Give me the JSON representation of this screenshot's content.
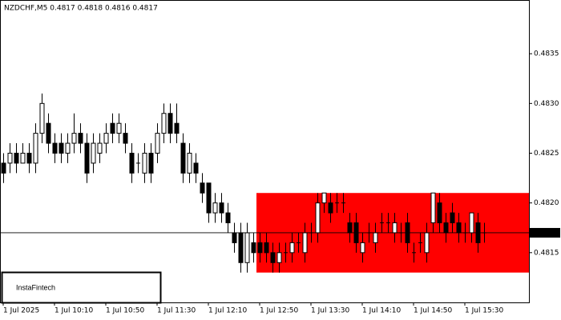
{
  "chart_data": {
    "type": "candlestick",
    "title": "NZDCHF,M5  0.4817 0.4818 0.4816 0.4817",
    "watermark": "InstaFintech",
    "categories": [
      "1 Jul 2025",
      null,
      null,
      null,
      null,
      null,
      null,
      null,
      "1 Jul 10:10",
      null,
      null,
      null,
      null,
      null,
      null,
      null,
      "1 Jul 10:50",
      null,
      null,
      null,
      null,
      null,
      null,
      null,
      "1 Jul 11:30",
      null,
      null,
      null,
      null,
      null,
      null,
      null,
      "1 Jul 12:10",
      null,
      null,
      null,
      null,
      null,
      null,
      null,
      "1 Jul 12:50",
      null,
      null,
      null,
      null,
      null,
      null,
      null,
      "1 Jul 13:30",
      null,
      null,
      null,
      null,
      null,
      null,
      null,
      "1 Jul 14:10",
      null,
      null,
      null,
      null,
      null,
      null,
      null,
      "1 Jul 14:50",
      null,
      null,
      null,
      null,
      null,
      null,
      null,
      "1 Jul 15:30",
      null,
      null,
      null
    ],
    "open": [
      0.4824,
      0.4824,
      0.4825,
      0.4824,
      0.4825,
      0.4824,
      0.4827,
      0.4828,
      0.4826,
      0.4826,
      0.4825,
      0.4826,
      0.4827,
      0.4826,
      0.4824,
      0.4825,
      0.4826,
      0.4828,
      0.4827,
      0.4827,
      0.4825,
      0.4824,
      0.4823,
      0.4825,
      0.4825,
      0.4827,
      0.4829,
      0.4828,
      0.4826,
      0.4823,
      0.4824,
      0.4822,
      0.4822,
      0.4819,
      0.482,
      0.4819,
      0.4817,
      0.4817,
      0.4814,
      0.4816,
      0.4816,
      0.4816,
      0.4815,
      0.4814,
      0.4815,
      0.4815,
      0.4816,
      0.4815,
      0.4817,
      0.4817,
      0.482,
      0.482,
      0.482,
      0.482,
      0.4818,
      0.4818,
      0.4815,
      0.4817,
      0.4816,
      0.4818,
      0.4818,
      0.4817,
      0.4817,
      0.4818,
      0.4815,
      0.4816,
      0.4815,
      0.4818,
      0.482,
      0.4818,
      0.4819,
      0.4818,
      0.4817,
      0.4817,
      0.4818,
      0.4817
    ],
    "high": [
      0.4825,
      0.4826,
      0.4826,
      0.4826,
      0.4826,
      0.4828,
      0.4831,
      0.4829,
      0.4827,
      0.4827,
      0.4827,
      0.4829,
      0.4828,
      0.4827,
      0.4827,
      0.4827,
      0.4828,
      0.4829,
      0.4829,
      0.4828,
      0.4826,
      0.4825,
      0.4826,
      0.4826,
      0.4828,
      0.483,
      0.483,
      0.483,
      0.4827,
      0.4826,
      0.4825,
      0.4823,
      0.4822,
      0.4821,
      0.4821,
      0.482,
      0.4818,
      0.4818,
      0.4818,
      0.4817,
      0.4817,
      0.4817,
      0.4816,
      0.4816,
      0.4816,
      0.4817,
      0.4817,
      0.4818,
      0.4818,
      0.4821,
      0.4821,
      0.4821,
      0.4821,
      0.4821,
      0.4819,
      0.4819,
      0.4817,
      0.4818,
      0.4818,
      0.4819,
      0.4819,
      0.4819,
      0.4818,
      0.4819,
      0.4816,
      0.4817,
      0.4818,
      0.4821,
      0.4821,
      0.4819,
      0.482,
      0.4819,
      0.4818,
      0.4819,
      0.4819,
      0.4818
    ],
    "low": [
      0.4822,
      0.4823,
      0.4823,
      0.4824,
      0.4823,
      0.4823,
      0.4826,
      0.4825,
      0.4824,
      0.4824,
      0.4824,
      0.4825,
      0.4825,
      0.4822,
      0.4823,
      0.4824,
      0.4825,
      0.4826,
      0.4826,
      0.4825,
      0.4822,
      0.4823,
      0.4822,
      0.4822,
      0.4824,
      0.4826,
      0.4826,
      0.4826,
      0.4822,
      0.4822,
      0.4822,
      0.482,
      0.4818,
      0.4818,
      0.4818,
      0.4817,
      0.4815,
      0.4813,
      0.4813,
      0.4814,
      0.4814,
      0.4814,
      0.4813,
      0.4813,
      0.4814,
      0.4814,
      0.4815,
      0.4814,
      0.4816,
      0.4816,
      0.4819,
      0.4818,
      0.4819,
      0.4819,
      0.4816,
      0.4815,
      0.4814,
      0.4816,
      0.4815,
      0.4817,
      0.4817,
      0.4816,
      0.4816,
      0.4815,
      0.4814,
      0.4815,
      0.4814,
      0.4817,
      0.4817,
      0.4816,
      0.4817,
      0.4816,
      0.4816,
      0.4816,
      0.4815,
      0.4816
    ],
    "close": [
      0.4823,
      0.4825,
      0.4824,
      0.4825,
      0.4824,
      0.4827,
      0.483,
      0.4826,
      0.4825,
      0.4825,
      0.4826,
      0.4827,
      0.4826,
      0.4823,
      0.4826,
      0.4826,
      0.4827,
      0.4827,
      0.4828,
      0.4826,
      0.4823,
      0.4824,
      0.4825,
      0.4823,
      0.4827,
      0.4829,
      0.4827,
      0.4827,
      0.4823,
      0.4825,
      0.4823,
      0.4821,
      0.4819,
      0.482,
      0.4819,
      0.4818,
      0.4816,
      0.4814,
      0.4817,
      0.4815,
      0.4815,
      0.4815,
      0.4814,
      0.4815,
      0.4815,
      0.4816,
      0.4816,
      0.4817,
      0.4817,
      0.482,
      0.4821,
      0.4819,
      0.482,
      0.482,
      0.4817,
      0.4816,
      0.4816,
      0.4817,
      0.4817,
      0.4818,
      0.4818,
      0.4818,
      0.4817,
      0.4816,
      0.4815,
      0.4816,
      0.4817,
      0.4821,
      0.4818,
      0.4817,
      0.4818,
      0.4817,
      0.4817,
      0.4819,
      0.4816,
      0.4817
    ],
    "up_color": "#ffffff",
    "down_color": "#000000",
    "ylim": [
      0.481,
      0.48404
    ],
    "yticks": [
      {
        "value": 0.4815,
        "label": "0.4815"
      },
      {
        "value": 0.482,
        "label": "0.4820"
      },
      {
        "value": 0.4825,
        "label": "0.4825"
      },
      {
        "value": 0.483,
        "label": "0.4830"
      },
      {
        "value": 0.4835,
        "label": "0.4835"
      }
    ],
    "last_price": 0.4817,
    "zone": {
      "start_index": 40,
      "top": 0.4821,
      "bottom": 0.4813,
      "color": "#ff0000"
    }
  }
}
